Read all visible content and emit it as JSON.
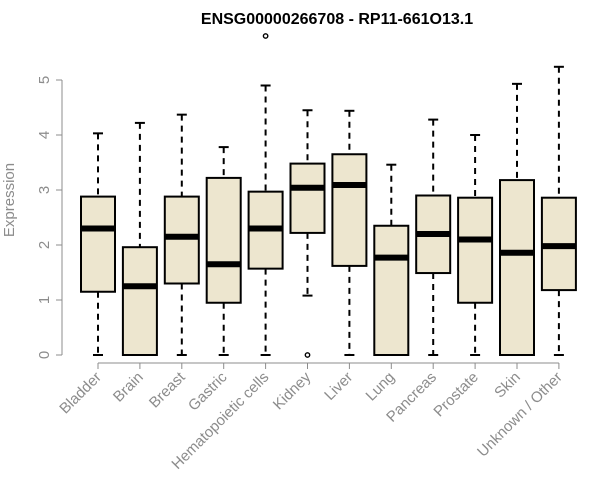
{
  "chart_data": {
    "type": "boxplot",
    "title": "ENSG00000266708 - RP11-661O13.1",
    "ylabel": "Expression",
    "xlabel": "",
    "ylim": [
      0,
      5.5
    ],
    "yticks": [
      0,
      1,
      2,
      3,
      4,
      5
    ],
    "box_fill": "#ede6cf",
    "median_color": "#000000",
    "axis_color": "#8c8c8c",
    "categories": [
      "Bladder",
      "Brain",
      "Breast",
      "Gastric",
      "Hematopoietic cells",
      "Kidney",
      "Liver",
      "Lung",
      "Pancreas",
      "Prostate",
      "Skin",
      "Unknown / Other"
    ],
    "boxes": [
      {
        "whisker_low": 0,
        "q1": 1.15,
        "median": 2.3,
        "q3": 2.88,
        "whisker_high": 4.03,
        "outliers": []
      },
      {
        "whisker_low": 0,
        "q1": 0,
        "median": 1.25,
        "q3": 1.96,
        "whisker_high": 4.22,
        "outliers": []
      },
      {
        "whisker_low": 0,
        "q1": 1.3,
        "median": 2.15,
        "q3": 2.88,
        "whisker_high": 4.37,
        "outliers": []
      },
      {
        "whisker_low": 0,
        "q1": 0.95,
        "median": 1.65,
        "q3": 3.22,
        "whisker_high": 3.78,
        "outliers": []
      },
      {
        "whisker_low": 0,
        "q1": 1.57,
        "median": 2.3,
        "q3": 2.97,
        "whisker_high": 4.9,
        "outliers": [
          5.8
        ]
      },
      {
        "whisker_low": 1.08,
        "q1": 2.22,
        "median": 3.04,
        "q3": 3.48,
        "whisker_high": 4.45,
        "outliers": [
          0
        ]
      },
      {
        "whisker_low": 0,
        "q1": 1.62,
        "median": 3.09,
        "q3": 3.65,
        "whisker_high": 4.44,
        "outliers": []
      },
      {
        "whisker_low": 0,
        "q1": 0,
        "median": 1.77,
        "q3": 2.35,
        "whisker_high": 3.46,
        "outliers": []
      },
      {
        "whisker_low": 0,
        "q1": 1.49,
        "median": 2.2,
        "q3": 2.9,
        "whisker_high": 4.28,
        "outliers": []
      },
      {
        "whisker_low": 0,
        "q1": 0.95,
        "median": 2.1,
        "q3": 2.86,
        "whisker_high": 4.0,
        "outliers": []
      },
      {
        "whisker_low": 0,
        "q1": 0,
        "median": 1.86,
        "q3": 3.18,
        "whisker_high": 4.93,
        "outliers": []
      },
      {
        "whisker_low": 0,
        "q1": 1.18,
        "median": 1.98,
        "q3": 2.86,
        "whisker_high": 5.24,
        "outliers": []
      }
    ]
  }
}
